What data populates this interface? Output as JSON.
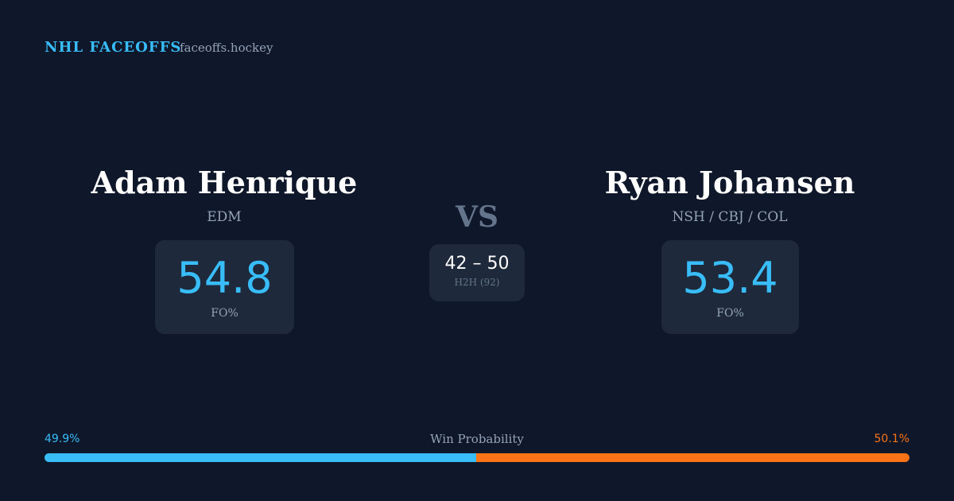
{
  "header": {
    "brand": "NHL FACEOFFS",
    "site": "faceoffs.hockey"
  },
  "players": [
    {
      "name": "Adam Henrique",
      "teams": "EDM",
      "stat": "54.8",
      "stat_label": "FO%"
    },
    {
      "name": "Ryan Johansen",
      "teams": "NSH / CBJ / COL",
      "stat": "53.4",
      "stat_label": "FO%"
    }
  ],
  "versus": {
    "label": "VS",
    "score": "42 – 50",
    "caption": "H2H (92)"
  },
  "win_probability": {
    "title": "Win Probability",
    "left": {
      "value": 49.9,
      "label": "49.9%",
      "color": "#38bdf8"
    },
    "right": {
      "value": 50.1,
      "label": "50.1%",
      "color": "#f97316"
    }
  }
}
